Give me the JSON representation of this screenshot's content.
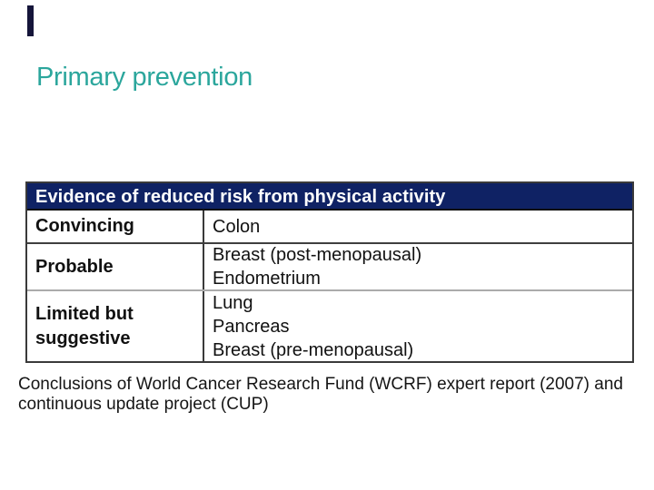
{
  "slide": {
    "title": "Primary prevention",
    "title_color": "#2BA69C"
  },
  "table": {
    "header": "Evidence of reduced risk from physical activity",
    "header_bg": "#0F2264",
    "rows": [
      {
        "label": "Convincing",
        "items": [
          "Colon"
        ]
      },
      {
        "label": "Probable",
        "items": [
          "Breast (post-menopausal)",
          "Endometrium"
        ]
      },
      {
        "label": "Limited but suggestive",
        "items": [
          "Lung",
          "Pancreas",
          "Breast (pre-menopausal)"
        ]
      }
    ]
  },
  "caption": {
    "line1": "Conclusions of World Cancer Research Fund (WCRF) expert report (2007) and",
    "line2": "continuous update project (CUP)"
  }
}
